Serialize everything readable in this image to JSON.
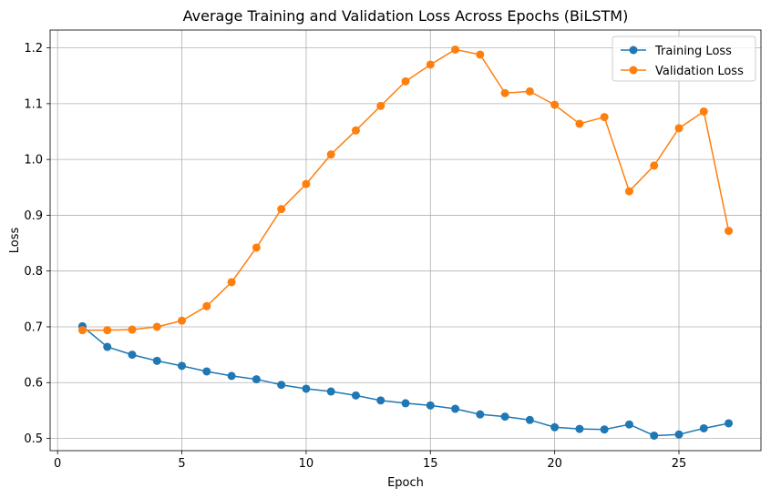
{
  "chart_data": {
    "type": "line",
    "title": "Average Training and Validation Loss Across Epochs (BiLSTM)",
    "xlabel": "Epoch",
    "ylabel": "Loss",
    "xlim": [
      -0.3,
      28.3
    ],
    "ylim": [
      0.478,
      1.232
    ],
    "xticks": [
      0,
      5,
      10,
      15,
      20,
      25
    ],
    "yticks": [
      0.5,
      0.6,
      0.7,
      0.8,
      0.9,
      1.0,
      1.1,
      1.2
    ],
    "ytick_labels": [
      "0.5",
      "0.6",
      "0.7",
      "0.8",
      "0.9",
      "1.0",
      "1.1",
      "1.2"
    ],
    "grid": true,
    "legend_position": "top-right",
    "x": [
      1,
      2,
      3,
      4,
      5,
      6,
      7,
      8,
      9,
      10,
      11,
      12,
      13,
      14,
      15,
      16,
      17,
      18,
      19,
      20,
      21,
      22,
      23,
      24,
      25,
      26,
      27
    ],
    "series": [
      {
        "name": "Training Loss",
        "color": "#1f77b4",
        "values": [
          0.701,
          0.664,
          0.65,
          0.639,
          0.63,
          0.62,
          0.612,
          0.606,
          0.596,
          0.589,
          0.584,
          0.577,
          0.568,
          0.563,
          0.559,
          0.553,
          0.543,
          0.539,
          0.533,
          0.52,
          0.517,
          0.516,
          0.525,
          0.505,
          0.507,
          0.518,
          0.527
        ]
      },
      {
        "name": "Validation Loss",
        "color": "#ff7f0e",
        "values": [
          0.694,
          0.694,
          0.695,
          0.7,
          0.711,
          0.737,
          0.78,
          0.842,
          0.911,
          0.956,
          1.009,
          1.052,
          1.096,
          1.14,
          1.17,
          1.197,
          1.188,
          1.119,
          1.122,
          1.098,
          1.064,
          1.076,
          0.943,
          0.989,
          1.056,
          1.086,
          0.872
        ]
      }
    ]
  }
}
